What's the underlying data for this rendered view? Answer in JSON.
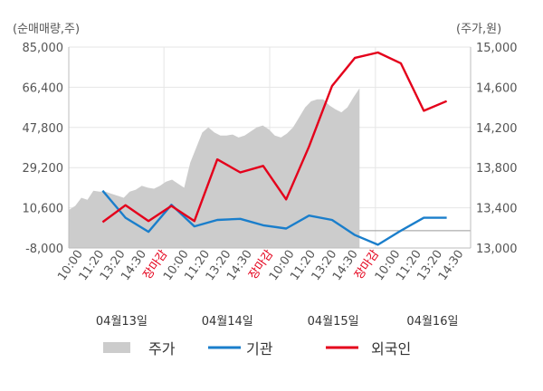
{
  "chart_data": {
    "type": "line",
    "left_axis_unit": "(순매매량,주)",
    "right_axis_unit": "(주가,원)",
    "left_ticks": [
      "85,000",
      "66,400",
      "47,800",
      "29,200",
      "10,600",
      "-8,000"
    ],
    "right_ticks": [
      "15,000",
      "14,600",
      "14,200",
      "13,800",
      "13,400",
      "13,000"
    ],
    "left_range": [
      -8000,
      85000
    ],
    "right_range": [
      13000,
      15000
    ],
    "x_tick_labels": [
      {
        "text": "10:00",
        "highlight": false
      },
      {
        "text": "11:20",
        "highlight": false
      },
      {
        "text": "13:20",
        "highlight": false
      },
      {
        "text": "14:30",
        "highlight": false
      },
      {
        "text": "장마감",
        "highlight": true
      },
      {
        "text": "10:00",
        "highlight": false
      },
      {
        "text": "11:20",
        "highlight": false
      },
      {
        "text": "13:20",
        "highlight": false
      },
      {
        "text": "14:30",
        "highlight": false
      },
      {
        "text": "장마감",
        "highlight": true
      },
      {
        "text": "10:00",
        "highlight": false
      },
      {
        "text": "11:20",
        "highlight": false
      },
      {
        "text": "13:20",
        "highlight": false
      },
      {
        "text": "14:30",
        "highlight": false
      },
      {
        "text": "장마감",
        "highlight": true
      },
      {
        "text": "10:00",
        "highlight": false
      },
      {
        "text": "11:20",
        "highlight": false
      },
      {
        "text": "13:20",
        "highlight": false
      },
      {
        "text": "14:30",
        "highlight": false
      }
    ],
    "day_labels": [
      "04월13일",
      "04월14일",
      "04월15일",
      "04월16일"
    ],
    "series": [
      {
        "name": "주가",
        "axis": "right",
        "style": "area",
        "color": "#cccccc",
        "values": [
          13380,
          13420,
          13500,
          13480,
          13570,
          13560,
          13560,
          13540,
          13520,
          13500,
          13560,
          13580,
          13620,
          13600,
          13590,
          13620,
          13660,
          13680,
          13640,
          13600,
          13850,
          14000,
          14150,
          14200,
          14150,
          14120,
          14120,
          14130,
          14100,
          14120,
          14160,
          14200,
          14220,
          14180,
          14120,
          14100,
          14140,
          14200,
          14300,
          14400,
          14460,
          14480,
          14480,
          14420,
          14380,
          14350,
          14400,
          14500,
          14590
        ]
      },
      {
        "name": "기관",
        "axis": "left",
        "style": "line",
        "color": "#1a7ecb",
        "values": [
          18500,
          6000,
          -500,
          12000,
          2000,
          5000,
          5500,
          2500,
          1000,
          7000,
          5000,
          -2000,
          -6500,
          0,
          6000,
          6000
        ]
      },
      {
        "name": "외국인",
        "axis": "left",
        "style": "line",
        "color": "#e4001b",
        "values": [
          4000,
          11800,
          4500,
          11500,
          4500,
          33000,
          27000,
          30000,
          14500,
          39000,
          67000,
          80000,
          82500,
          77500,
          55500,
          60000
        ]
      }
    ],
    "grid": true,
    "legend_position": "bottom"
  }
}
